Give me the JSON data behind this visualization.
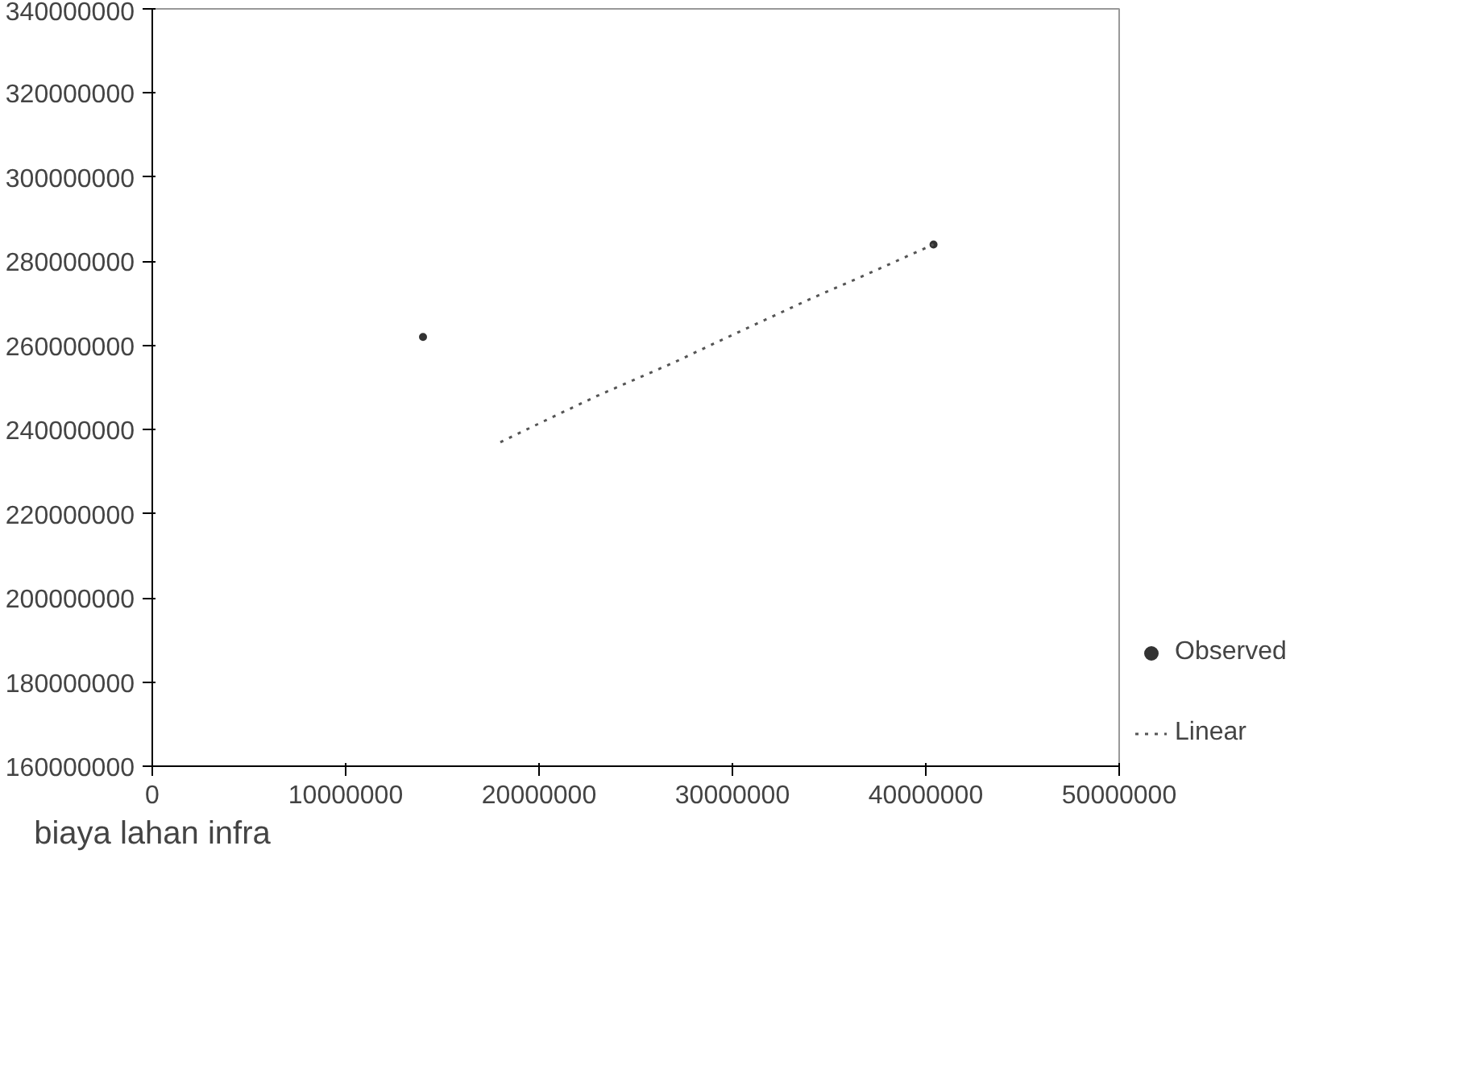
{
  "chart_data": {
    "type": "scatter",
    "xlabel": "biaya lahan infra",
    "xlim": [
      0,
      50000000
    ],
    "ylim": [
      160000000,
      340000000
    ],
    "xticks": [
      0,
      10000000,
      20000000,
      30000000,
      40000000,
      50000000
    ],
    "yticks": [
      160000000,
      180000000,
      200000000,
      220000000,
      240000000,
      260000000,
      280000000,
      300000000,
      320000000,
      340000000
    ],
    "grid": false,
    "legend": "right",
    "series": [
      {
        "name": "Observed",
        "marker": "circle",
        "color": "#333333",
        "x": [
          14000000,
          40400000
        ],
        "values": [
          262000000,
          284000000
        ]
      },
      {
        "name": "Linear",
        "type": "line",
        "line_style": "dotted",
        "color": "#555555",
        "x": [
          18000000,
          20700000,
          23000000,
          25000000,
          26000000,
          27000000,
          29300000,
          34000000,
          36500000,
          40400000
        ],
        "values": [
          237000000,
          243000000,
          248000000,
          252000000,
          254000000,
          256000000,
          261000000,
          271000000,
          276000000,
          284000000
        ]
      }
    ]
  }
}
